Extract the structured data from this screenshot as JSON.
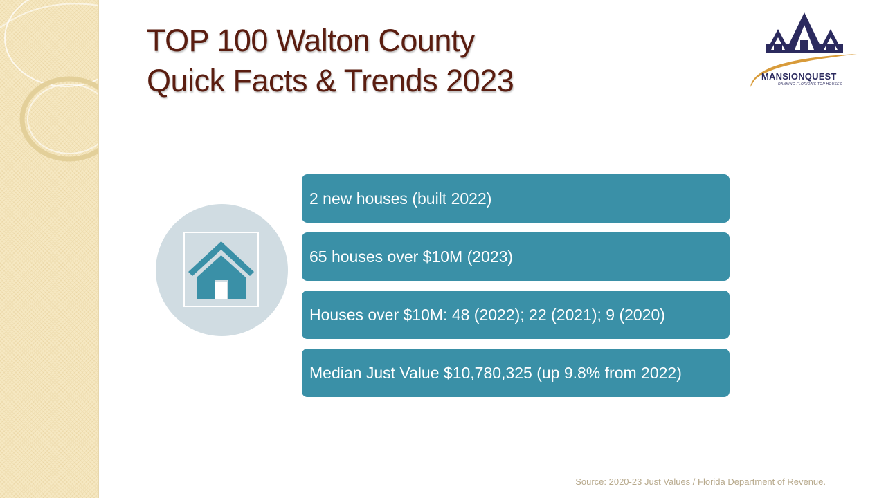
{
  "slide": {
    "title_line1": "TOP 100 Walton County",
    "title_line2": "Quick Facts & Trends 2023"
  },
  "logo": {
    "name": "MANSIONQUEST",
    "tagline": "RANKING FLORIDA'S TOP HOUSES",
    "colors": {
      "navy": "#2b2a5e",
      "gold": "#d89b3a"
    }
  },
  "icon": {
    "name": "house-icon",
    "color": "#3a90a7",
    "circle_color": "#d0dce2"
  },
  "facts": [
    {
      "text": "2 new houses (built 2022)"
    },
    {
      "text": "65 houses over $10M (2023)"
    },
    {
      "text": "Houses over $10M: 48 (2022); 22 (2021); 9 (2020)"
    },
    {
      "text": "Median Just Value $10,780,325 (up 9.8% from 2022)"
    }
  ],
  "source": "Source: 2020-23 Just Values / Florida Department of Revenue.",
  "colors": {
    "title": "#5a1d10",
    "fact_bg": "#3a90a7",
    "panel": "#f6e8c2"
  }
}
